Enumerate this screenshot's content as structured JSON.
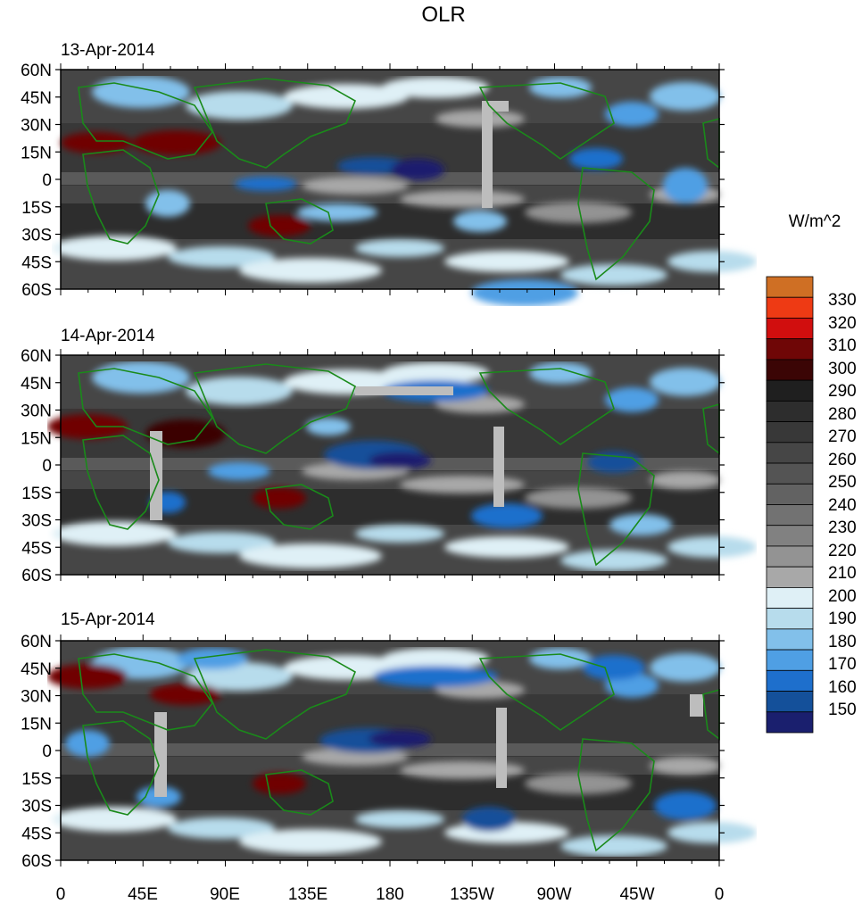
{
  "title": "OLR",
  "units": "W/m^2",
  "panels": [
    {
      "date": "13-Apr-2014"
    },
    {
      "date": "14-Apr-2014"
    },
    {
      "date": "15-Apr-2014"
    }
  ],
  "lat_labels": [
    "60N",
    "45N",
    "30N",
    "15N",
    "0",
    "15S",
    "30S",
    "45S",
    "60S"
  ],
  "lon_labels": [
    "0",
    "45E",
    "90E",
    "135E",
    "180",
    "135W",
    "90W",
    "45W",
    "0"
  ],
  "colorbar": {
    "colors": [
      "#cf6f24",
      "#ee3a14",
      "#d10e0e",
      "#6f0606",
      "#3b0505",
      "#1f1f1f",
      "#2d2d2d",
      "#383838",
      "#464646",
      "#545454",
      "#626262",
      "#727272",
      "#818181",
      "#939393",
      "#a8a8a8",
      "#dff0f6",
      "#b7dcec",
      "#82c0ea",
      "#4f9fe4",
      "#1e6fcc",
      "#14509a",
      "#1a1f6e"
    ],
    "labels": [
      "330",
      "320",
      "310",
      "300",
      "290",
      "280",
      "270",
      "260",
      "250",
      "240",
      "230",
      "220",
      "210",
      "200",
      "190",
      "180",
      "170",
      "160",
      "150"
    ]
  },
  "colors": {
    "land_outline": "#1a8a1a",
    "missing": "#bdbdbd"
  }
}
